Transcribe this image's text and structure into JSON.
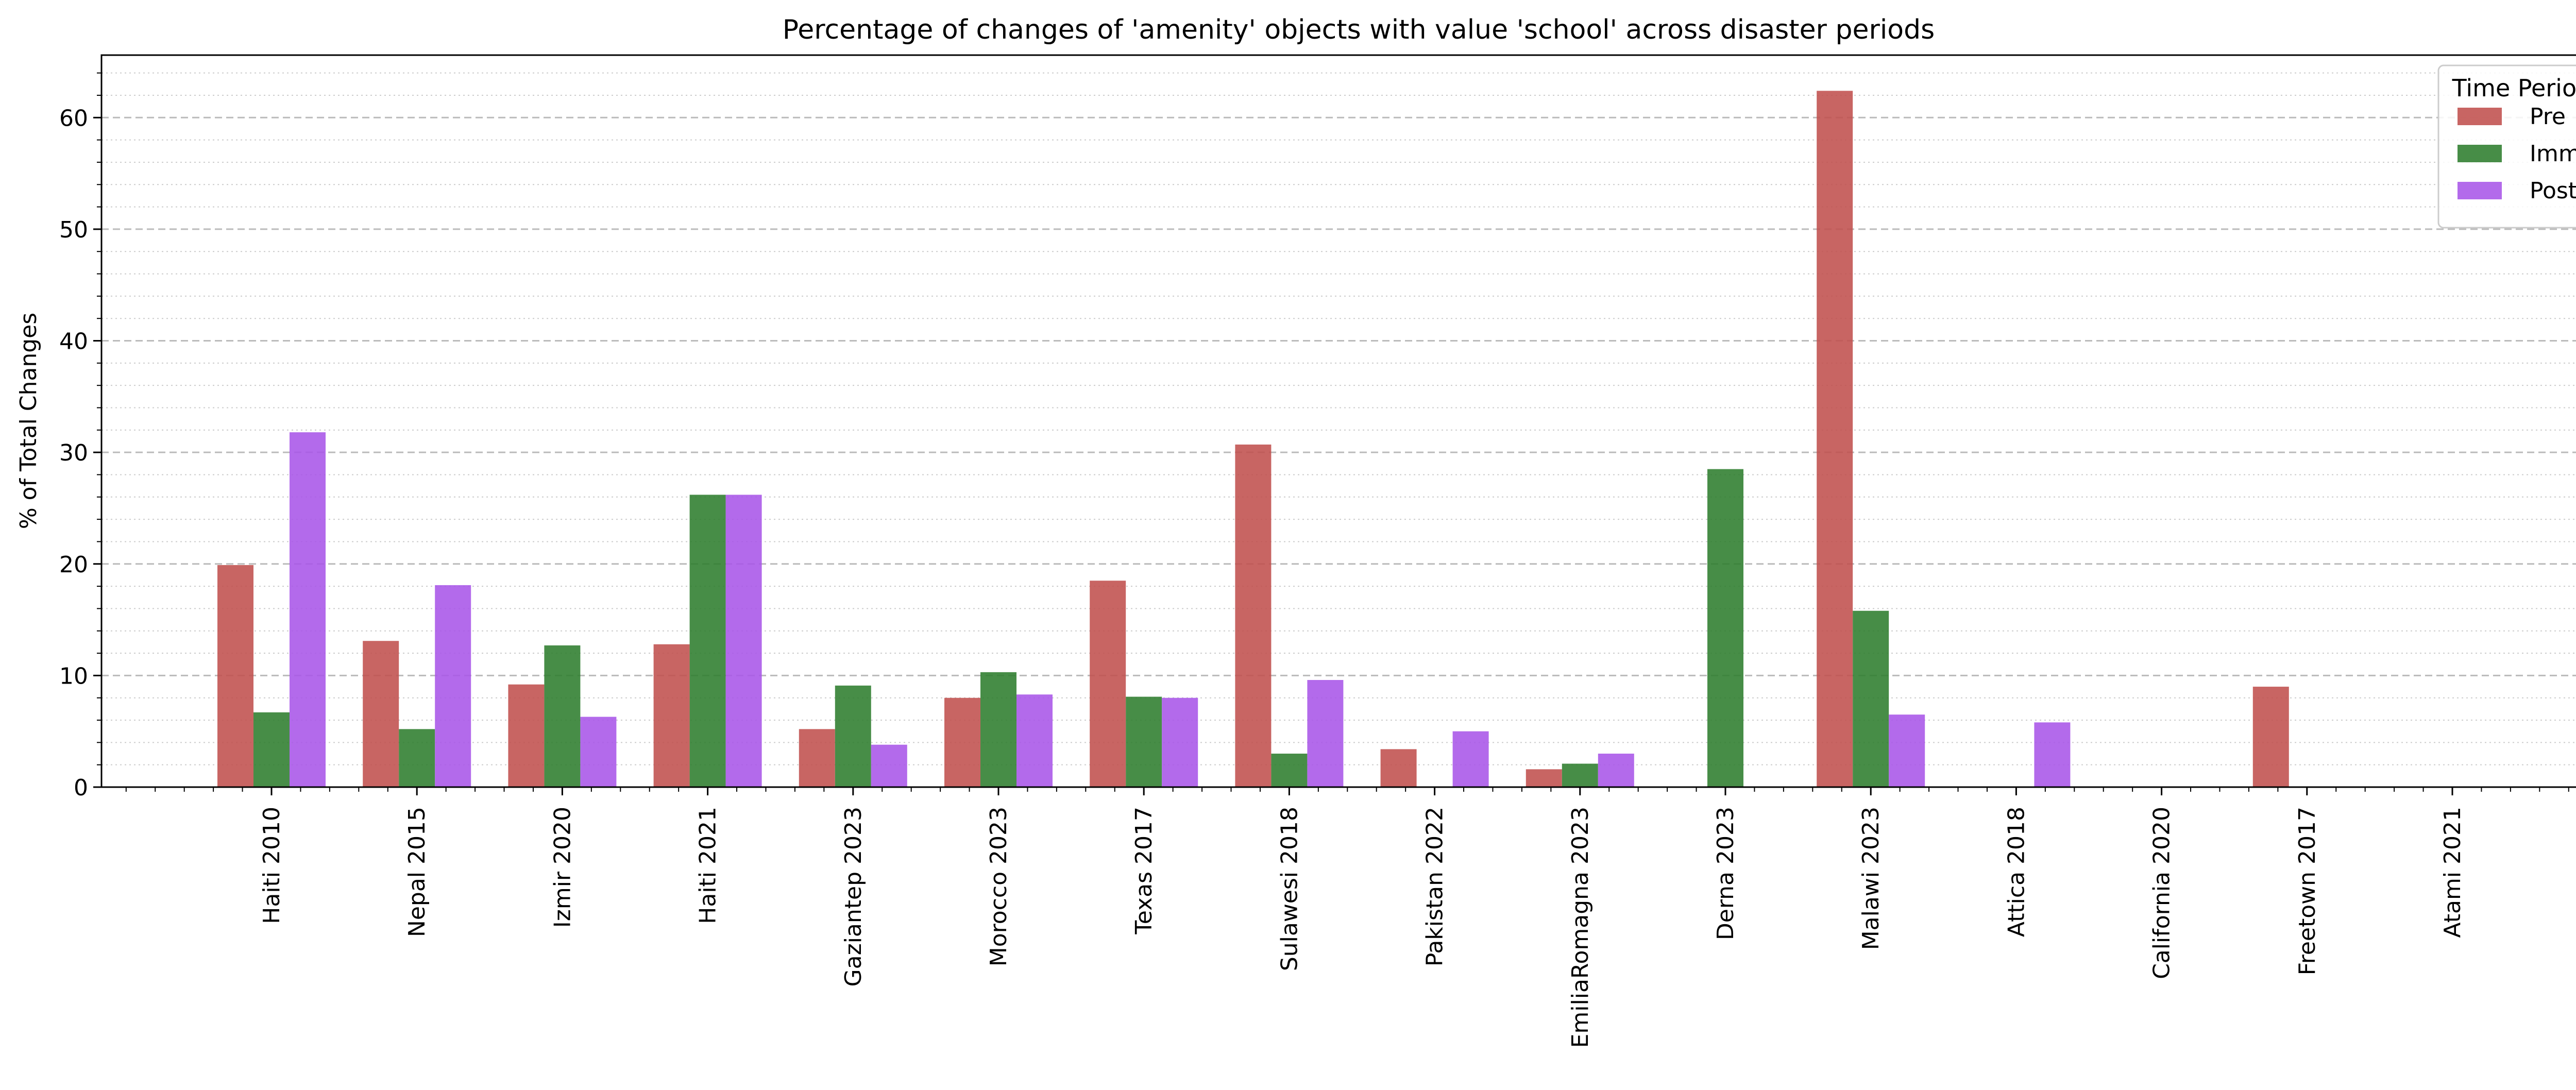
{
  "chart_data": {
    "type": "bar",
    "title": "Percentage of changes of 'amenity' objects with value 'school' across disaster periods",
    "xlabel": "",
    "ylabel": "% of Total Changes",
    "ylim": [
      0,
      65.6
    ],
    "yticks": [
      0,
      10,
      20,
      30,
      40,
      50,
      60
    ],
    "grid": "major dashed, minor dotted",
    "legend": {
      "title": "Time Period",
      "placement": "top-right"
    },
    "categories": [
      "Haiti 2010",
      "Nepal 2015",
      "Izmir 2020",
      "Haiti 2021",
      "Gaziantep 2023",
      "Morocco 2023",
      "Texas 2017",
      "Sulawesi 2018",
      "Pakistan 2022",
      "EmiliaRomagna 2023",
      "Derna 2023",
      "Malawi 2023",
      "Attica 2018",
      "California 2020",
      "Freetown 2017",
      "Atami 2021"
    ],
    "series": [
      {
        "name": "Pre",
        "color": "#c0504d",
        "values": [
          19.9,
          13.1,
          9.2,
          12.8,
          5.2,
          8.0,
          18.5,
          30.7,
          3.4,
          1.6,
          0,
          62.4,
          0,
          0,
          9.0,
          0
        ]
      },
      {
        "name": "Imm",
        "color": "#2e7d2e",
        "values": [
          6.7,
          5.2,
          12.7,
          26.2,
          9.1,
          10.3,
          8.1,
          3.0,
          0,
          2.1,
          28.5,
          15.8,
          0,
          0,
          0,
          0
        ]
      },
      {
        "name": "Post",
        "color": "#a855e8",
        "values": [
          31.8,
          18.1,
          6.3,
          26.2,
          3.8,
          8.3,
          8.0,
          9.6,
          5.0,
          3.0,
          0,
          6.5,
          5.8,
          0,
          0,
          0
        ]
      }
    ]
  }
}
